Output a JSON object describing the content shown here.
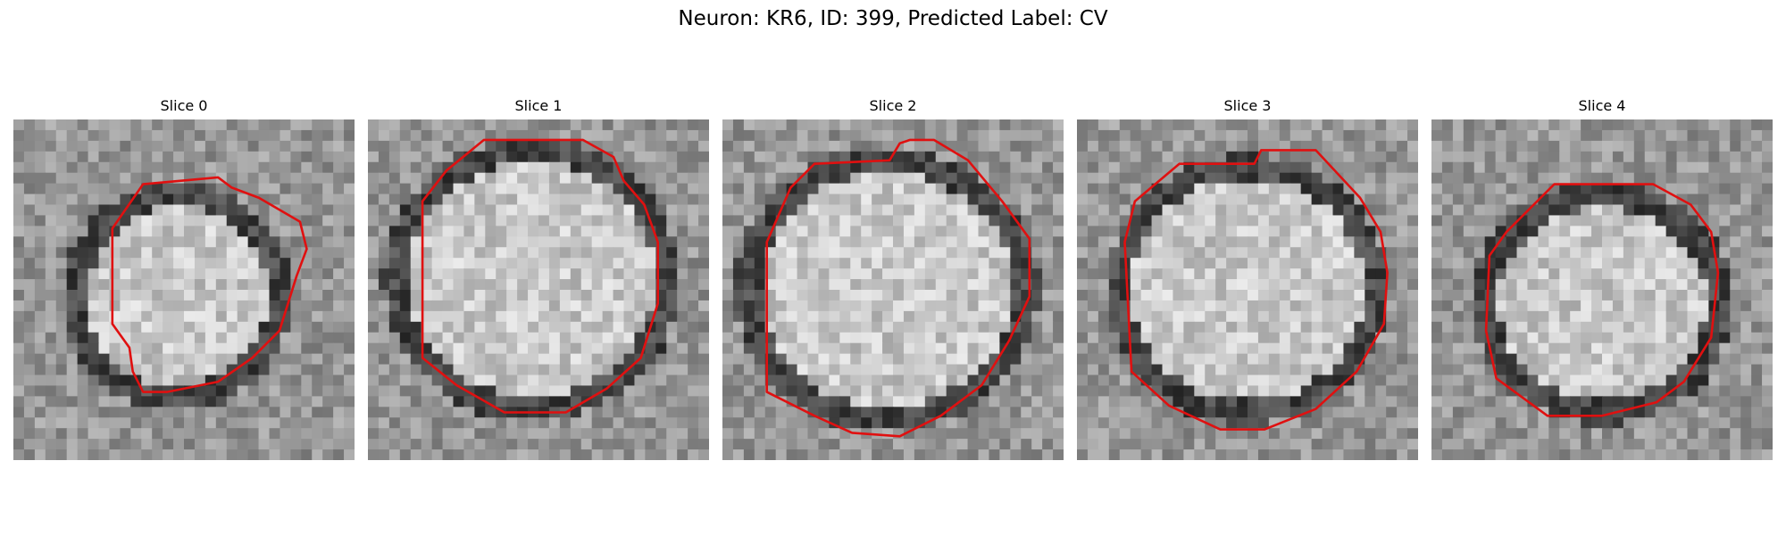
{
  "figure": {
    "title": "Neuron: KR6, ID: 399, Predicted Label: CV",
    "contour_color": "#e01010",
    "panels": [
      {
        "title": "Slice 0"
      },
      {
        "title": "Slice 1"
      },
      {
        "title": "Slice 2"
      },
      {
        "title": "Slice 3"
      },
      {
        "title": "Slice 4"
      }
    ]
  }
}
